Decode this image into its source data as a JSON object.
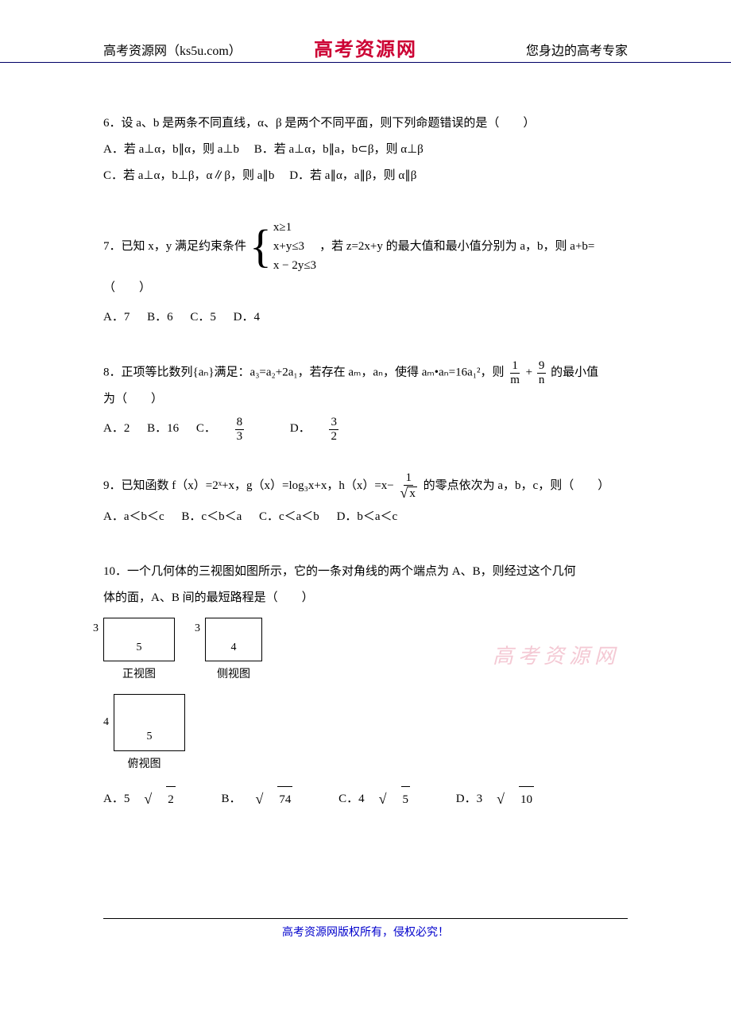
{
  "header": {
    "left": "高考资源网（ks5u.com）",
    "center": "高考资源网",
    "right": "您身边的高考专家"
  },
  "q6": {
    "stem": "6．设 a、b 是两条不同直线，α、β 是两个不同平面，则下列命题错误的是（　　）",
    "optA": "A．若 a⊥α，b∥α，则 a⊥b",
    "optB": "B．若 a⊥α，b∥a，b⊂β，则 α⊥β",
    "optC": "C．若 a⊥α，b⊥β，α∥β，则 a∥b",
    "optD": "D．若 a∥α，a∥β，则 α∥β"
  },
  "q7": {
    "stem_pre": "7．已知 x，y 满足约束条件",
    "cond1": "x≥1",
    "cond2": "x+y≤3",
    "cond3": "x − 2y≤3",
    "stem_post": "，若 z=2x+y 的最大值和最小值分别为 a，b，则 a+b=",
    "blank": "（　　）",
    "optA": "A．7",
    "optB": "B．6",
    "optC": "C．5",
    "optD": "D．4"
  },
  "q8": {
    "stem_pre": "8．正项等比数列{aₙ}满足：a₃=a₂+2a₁，若存在 aₘ，aₙ，使得 aₘ•aₙ=16a₁²，则",
    "frac1_num": "1",
    "frac1_den": "m",
    "plus": "+",
    "frac2_num": "9",
    "frac2_den": "n",
    "stem_post": "的最小值",
    "line2": "为（　　）",
    "optA": "A．2",
    "optB": "B．16",
    "optC_pre": "C．",
    "optC_num": "8",
    "optC_den": "3",
    "optD_pre": "D．",
    "optD_num": "3",
    "optD_den": "2"
  },
  "q9": {
    "stem_pre": "9．已知函数 f（x）=2ˣ+x，g（x）=log₃x+x，h（x）=x−",
    "frac_num": "1",
    "sqrt_x": "x",
    "stem_post": "的零点依次为 a，b，c，则（　　）",
    "optA": "A．a＜b＜c",
    "optB": "B．c＜b＜a",
    "optC": "C．c＜a＜b",
    "optD": "D．b＜a＜c"
  },
  "q10": {
    "stem1": "10．一个几何体的三视图如图所示，它的一条对角线的两个端点为 A、B，则经过这个几何",
    "stem2": "体的面，A、B 间的最短路程是（　　）",
    "front_h": "3",
    "front_w": "5",
    "side_h": "3",
    "side_w": "4",
    "top_h": "4",
    "top_w": "5",
    "label_front": "正视图",
    "label_side": "侧视图",
    "label_top": "俯视图",
    "optA_pre": "A．5",
    "optA_sqrt": "2",
    "optB_pre": " B．",
    "optB_sqrt": "74",
    "optC_pre": " C．4",
    "optC_sqrt": "5",
    "optD_pre": " D．3",
    "optD_sqrt": "10"
  },
  "watermark": "高考资源网",
  "footer": "高考资源网版权所有，侵权必究！"
}
